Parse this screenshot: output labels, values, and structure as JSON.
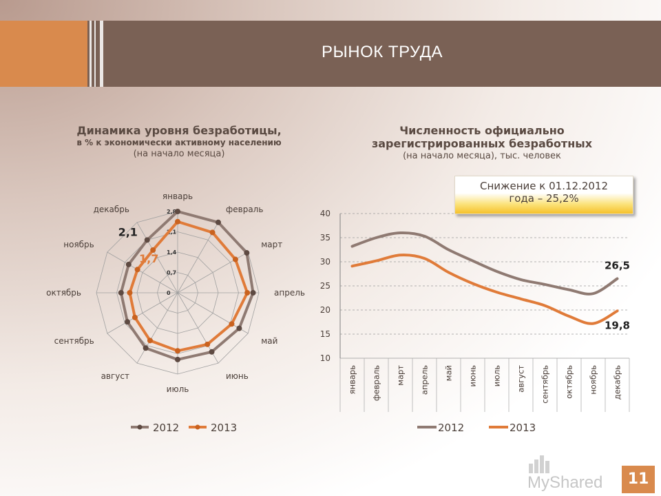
{
  "slide": {
    "title": "РЫНОК ТРУДА",
    "page_number": "11",
    "watermark": "MyShared"
  },
  "radar_title": {
    "main": "Динамика уровня безработицы,",
    "sub1": "в % к экономически активному населению",
    "sub2": "(на начало месяца)"
  },
  "line_title": {
    "main1": "Численность официально",
    "main2": "зарегистрированных безработных",
    "sub": "(на начало месяца), тыс. человек"
  },
  "note": {
    "line1": "Снижение к 01.12.2012",
    "line2": "года – 25,2%"
  },
  "colors": {
    "series_2012": "#8f7a72",
    "series_2013": "#e07b39",
    "grid": "#a0a0a0",
    "text": "#4a3e38"
  },
  "chart_data": [
    {
      "type": "radar",
      "categories": [
        "январь",
        "февраль",
        "март",
        "апрель",
        "май",
        "июнь",
        "июль",
        "август",
        "сентябрь",
        "октябрь",
        "ноябрь",
        "декабрь"
      ],
      "rlim": [
        0,
        2.8
      ],
      "ticks": [
        "0",
        "0,7",
        "1,4",
        "2,1",
        "2,8"
      ],
      "series": [
        {
          "name": "2012",
          "values": [
            2.8,
            2.8,
            2.75,
            2.6,
            2.45,
            2.35,
            2.3,
            2.2,
            2.0,
            1.95,
            1.95,
            2.1
          ]
        },
        {
          "name": "2013",
          "values": [
            2.45,
            2.4,
            2.3,
            2.4,
            2.15,
            2.05,
            2.0,
            1.9,
            1.7,
            1.65,
            1.6,
            1.7
          ]
        }
      ],
      "annotations": [
        {
          "text": "2,1",
          "series": "2012",
          "category": "декабрь"
        },
        {
          "text": "1,7",
          "series": "2013",
          "category": "декабрь"
        }
      ],
      "legend": "bottom"
    },
    {
      "type": "line",
      "categories": [
        "январь",
        "февраль",
        "март",
        "апрель",
        "май",
        "июнь",
        "июль",
        "август",
        "сентябрь",
        "октябрь",
        "ноябрь",
        "декабрь"
      ],
      "ylim": [
        10,
        40
      ],
      "yticks": [
        "10",
        "15",
        "20",
        "25",
        "30",
        "35",
        "40"
      ],
      "grid": true,
      "series": [
        {
          "name": "2012",
          "values": [
            33.2,
            35.0,
            36.0,
            35.3,
            32.5,
            30.2,
            28.0,
            26.3,
            25.3,
            24.2,
            23.4,
            26.5
          ]
        },
        {
          "name": "2013",
          "values": [
            29.1,
            30.2,
            31.4,
            30.7,
            27.8,
            25.5,
            23.7,
            22.3,
            20.9,
            18.7,
            17.2,
            19.8
          ]
        }
      ],
      "annotations": [
        {
          "text": "26,5",
          "series": "2012",
          "category": "декабрь"
        },
        {
          "text": "19,8",
          "series": "2013",
          "category": "декабрь"
        }
      ],
      "legend": "bottom"
    }
  ]
}
